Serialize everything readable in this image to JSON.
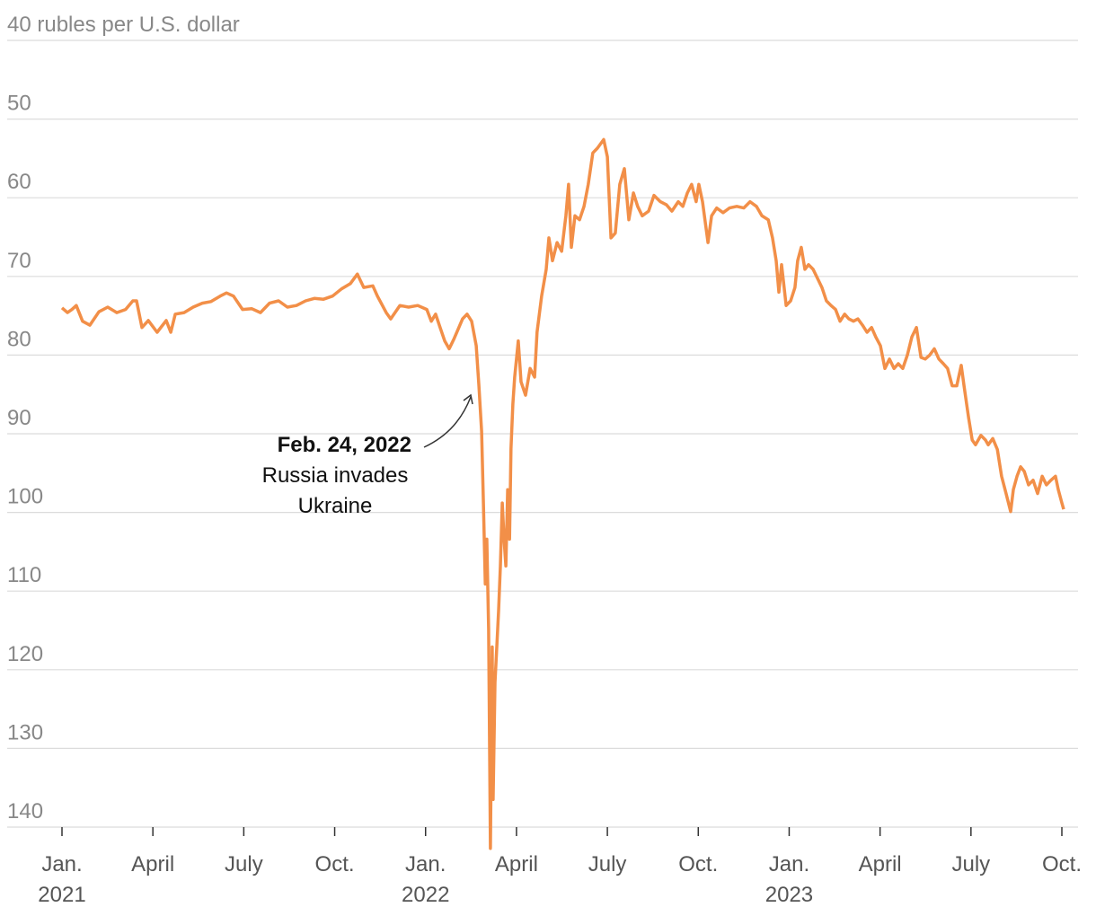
{
  "chart_data": {
    "type": "line",
    "color": "#f28f48",
    "y_inverted": true,
    "grid": true,
    "xlim": [
      0,
      33
    ],
    "ylim": [
      40,
      140
    ],
    "yticks": [
      {
        "value": 40,
        "label": "40 rubles per U.S. dollar"
      },
      50,
      60,
      70,
      80,
      90,
      100,
      110,
      120,
      130,
      140
    ],
    "xticks": [
      {
        "value": 0,
        "label": "Jan."
      },
      {
        "value": 3,
        "label": "April"
      },
      {
        "value": 6,
        "label": "July"
      },
      {
        "value": 9,
        "label": "Oct."
      },
      {
        "value": 12,
        "label": "Jan."
      },
      {
        "value": 15,
        "label": "April"
      },
      {
        "value": 18,
        "label": "July"
      },
      {
        "value": 21,
        "label": "Oct."
      },
      {
        "value": 24,
        "label": "Jan."
      },
      {
        "value": 27,
        "label": "April"
      },
      {
        "value": 30,
        "label": "July"
      },
      {
        "value": 33,
        "label": "Oct."
      }
    ],
    "x_year_labels": [
      {
        "value": 0,
        "label": "2021"
      },
      {
        "value": 12,
        "label": "2022"
      },
      {
        "value": 24,
        "label": "2023"
      }
    ],
    "annotation": {
      "x": 13.76,
      "y": 83.9,
      "title": "Feb. 24, 2022",
      "lines": [
        "Russia invades",
        "Ukraine"
      ]
    },
    "x": [
      0,
      0.18,
      0.33,
      0.47,
      0.68,
      0.92,
      1.22,
      1.51,
      1.81,
      2.1,
      2.34,
      2.46,
      2.64,
      2.85,
      3.14,
      3.44,
      3.59,
      3.74,
      4.03,
      4.33,
      4.63,
      4.92,
      5.22,
      5.43,
      5.66,
      5.96,
      6.26,
      6.55,
      6.85,
      7.15,
      7.44,
      7.74,
      8.04,
      8.33,
      8.63,
      8.93,
      9.22,
      9.52,
      9.75,
      9.96,
      10.26,
      10.41,
      10.7,
      10.85,
      11.15,
      11.44,
      11.74,
      12.04,
      12.19,
      12.33,
      12.48,
      12.63,
      12.78,
      12.93,
      13.22,
      13.37,
      13.52,
      13.67,
      13.76,
      13.85,
      13.91,
      13.97,
      14.02,
      14.08,
      14.14,
      14.2,
      14.23,
      14.29,
      14.35,
      14.41,
      14.47,
      14.53,
      14.59,
      14.65,
      14.71,
      14.77,
      14.82,
      14.88,
      14.94,
      15.0,
      15.06,
      15.15,
      15.3,
      15.45,
      15.6,
      15.68,
      15.83,
      15.98,
      16.07,
      16.19,
      16.34,
      16.49,
      16.63,
      16.72,
      16.81,
      16.93,
      17.08,
      17.23,
      17.37,
      17.52,
      17.67,
      17.88,
      18.0,
      18.12,
      18.26,
      18.41,
      18.56,
      18.71,
      18.86,
      19.0,
      19.15,
      19.36,
      19.54,
      19.75,
      19.95,
      20.13,
      20.34,
      20.49,
      20.64,
      20.78,
      20.93,
      21.02,
      21.14,
      21.32,
      21.44,
      21.61,
      21.82,
      22.03,
      22.27,
      22.5,
      22.71,
      22.92,
      23.1,
      23.31,
      23.45,
      23.57,
      23.66,
      23.75,
      23.9,
      24.05,
      24.19,
      24.28,
      24.4,
      24.52,
      24.64,
      24.79,
      24.94,
      25.08,
      25.23,
      25.38,
      25.53,
      25.68,
      25.83,
      25.97,
      26.12,
      26.27,
      26.42,
      26.57,
      26.72,
      26.86,
      27.01,
      27.16,
      27.31,
      27.46,
      27.6,
      27.75,
      27.9,
      28.05,
      28.2,
      28.35,
      28.49,
      28.64,
      28.79,
      28.94,
      29.09,
      29.23,
      29.38,
      29.53,
      29.68,
      29.77,
      29.92,
      30.04,
      30.15,
      30.33,
      30.48,
      30.57,
      30.72,
      30.87,
      31.01,
      31.16,
      31.31,
      31.4,
      31.52,
      31.64,
      31.76,
      31.9,
      32.05,
      32.2,
      32.35,
      32.49,
      32.64,
      32.79,
      32.88,
      33.0,
      33.06
    ],
    "values": [
      74.0,
      74.6,
      74.2,
      73.7,
      75.7,
      76.2,
      74.5,
      73.9,
      74.6,
      74.2,
      73.1,
      73.1,
      76.5,
      75.6,
      77.1,
      75.6,
      77.1,
      74.8,
      74.6,
      73.9,
      73.4,
      73.2,
      72.5,
      72.1,
      72.5,
      74.2,
      74.1,
      74.6,
      73.4,
      73.1,
      73.9,
      73.7,
      73.1,
      72.8,
      72.9,
      72.5,
      71.6,
      70.9,
      69.7,
      71.4,
      71.2,
      72.5,
      74.6,
      75.4,
      73.7,
      73.9,
      73.7,
      74.2,
      75.7,
      74.8,
      76.5,
      78.2,
      79.2,
      78.0,
      75.4,
      74.8,
      75.7,
      78.8,
      83.9,
      89.7,
      98.8,
      109.1,
      103.4,
      114.8,
      142.7,
      117.1,
      136.5,
      121.6,
      117.1,
      112.5,
      106.8,
      98.8,
      103.4,
      106.8,
      97.1,
      103.4,
      91.9,
      86.2,
      82.8,
      80.5,
      78.2,
      83.4,
      85.1,
      81.7,
      82.8,
      77.1,
      72.5,
      69.1,
      65.1,
      68.0,
      65.7,
      66.8,
      62.3,
      58.3,
      66.3,
      62.3,
      62.8,
      61.1,
      58.3,
      54.3,
      53.7,
      52.6,
      54.8,
      65.1,
      64.5,
      58.3,
      56.3,
      62.8,
      59.4,
      61.1,
      62.3,
      61.7,
      59.7,
      60.5,
      60.9,
      61.7,
      60.5,
      61.1,
      59.4,
      58.3,
      60.5,
      58.3,
      60.5,
      65.7,
      62.3,
      61.3,
      61.9,
      61.3,
      61.1,
      61.3,
      60.5,
      61.1,
      62.3,
      62.8,
      65.1,
      68.0,
      72.0,
      68.5,
      73.7,
      73.1,
      71.4,
      68.0,
      66.3,
      69.1,
      68.5,
      69.1,
      70.3,
      71.4,
      73.1,
      73.7,
      74.2,
      75.7,
      74.8,
      75.4,
      75.7,
      75.4,
      76.2,
      77.1,
      76.5,
      77.7,
      78.8,
      81.7,
      80.5,
      81.7,
      81.1,
      81.7,
      80.0,
      77.7,
      76.5,
      80.3,
      80.5,
      80.0,
      79.2,
      80.5,
      81.1,
      81.7,
      83.9,
      83.9,
      81.3,
      83.9,
      87.9,
      90.8,
      91.4,
      90.2,
      90.8,
      91.4,
      90.6,
      92.0,
      95.4,
      97.6,
      99.9,
      97.1,
      95.4,
      94.2,
      94.8,
      96.5,
      95.9,
      97.6,
      95.4,
      96.5,
      95.9,
      95.4,
      97.1,
      98.8,
      99.6
    ]
  }
}
